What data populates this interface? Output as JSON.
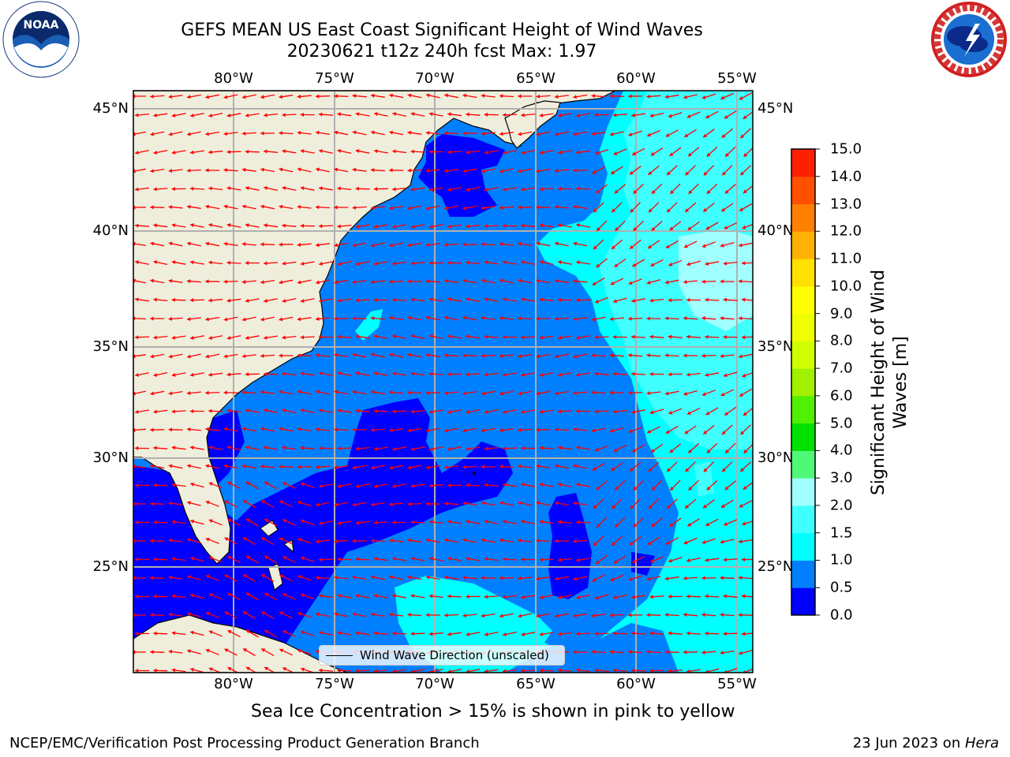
{
  "title": {
    "line1": "GEFS MEAN US East Coast Significant Height of Wind Waves",
    "line2": "20230621 t12z 240h fcst   Max: 1.97"
  },
  "logos": {
    "left": {
      "text": "NOAA",
      "ring_text": "NATIONAL OCEANIC AND ATMOSPHERIC ADMINISTRATION · U.S. DEPARTMENT OF COMMERCE",
      "icon": "noaa-logo"
    },
    "right": {
      "ring_text": "NATIONAL WEATHER SERVICE",
      "icon": "nws-logo"
    }
  },
  "map": {
    "longitude_ticks": [
      "80°W",
      "75°W",
      "70°W",
      "65°W",
      "60°W",
      "55°W"
    ],
    "latitude_ticks": [
      "45°N",
      "40°N",
      "35°N",
      "30°N",
      "25°N"
    ],
    "legend_label": "Wind Wave Direction (unscaled)",
    "arrow_color": "#ff0000",
    "land_color": "#efeedc",
    "grid": true
  },
  "colorbar": {
    "title": "Significant Height of Wind Waves [m]",
    "ticks": [
      "0.0",
      "0.5",
      "1.0",
      "1.5",
      "2.0",
      "3.0",
      "4.0",
      "5.0",
      "6.0",
      "7.0",
      "8.0",
      "9.0",
      "10.0",
      "11.0",
      "12.0",
      "13.0",
      "14.0",
      "15.0"
    ],
    "colors": [
      "#0000ff",
      "#0080ff",
      "#00ffff",
      "#40ffff",
      "#a0ffff",
      "#50f878",
      "#00e000",
      "#50f000",
      "#a0f000",
      "#d0ff00",
      "#f0ff00",
      "#ffff00",
      "#ffe000",
      "#ffb000",
      "#ff8000",
      "#ff5000",
      "#ff2000"
    ]
  },
  "caption": "Sea Ice Concentration > 15% is shown in pink to yellow",
  "footer": {
    "left": "NCEP/EMC/Verification Post Processing Product Generation Branch",
    "right_date": "23 Jun 2023 on ",
    "right_host": "Hera"
  }
}
